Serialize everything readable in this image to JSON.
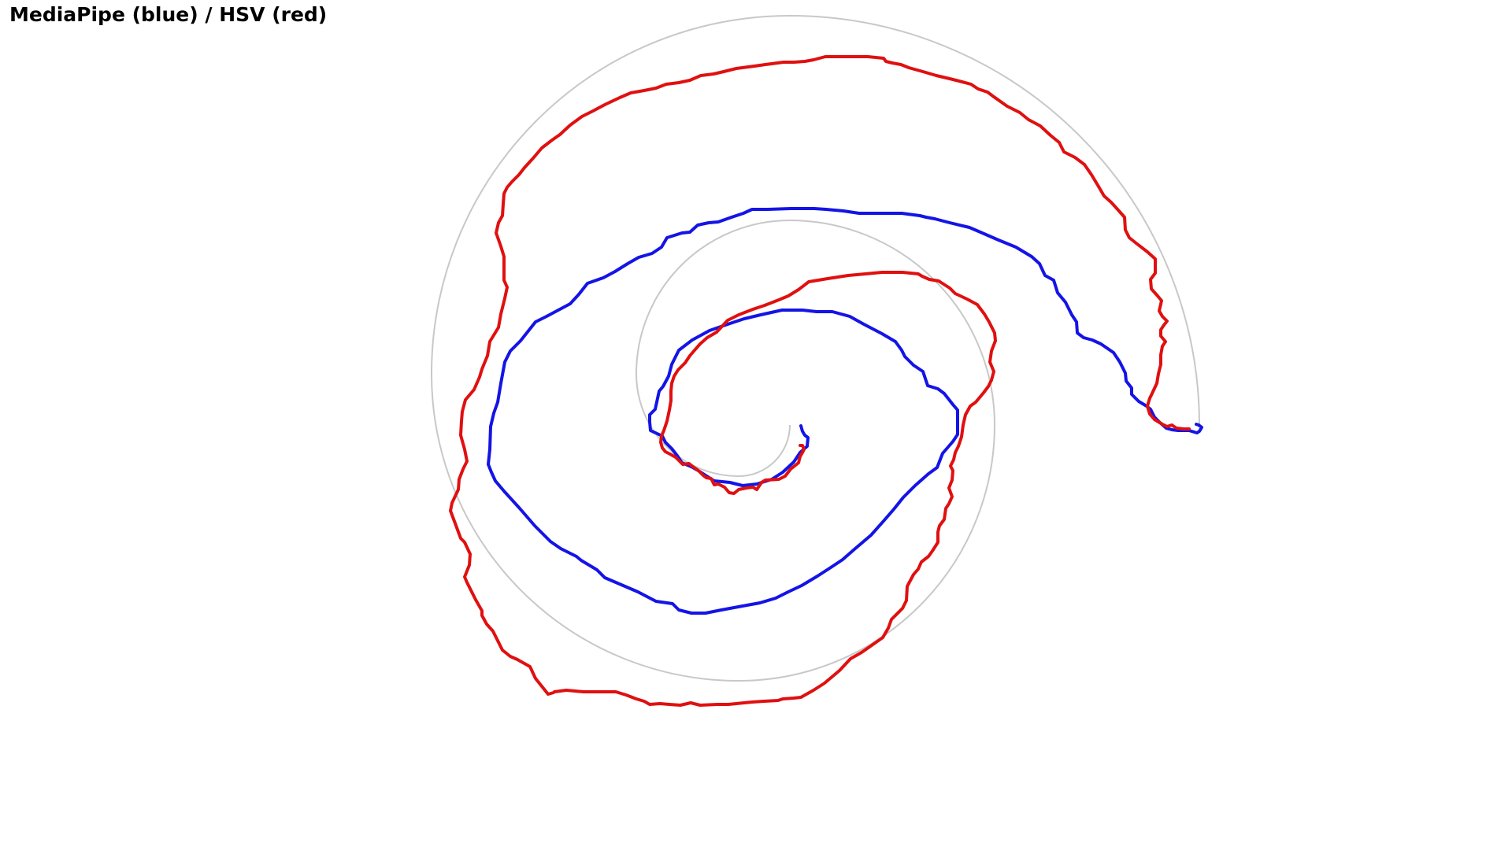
{
  "title": "MediaPipe (blue) / HSV (red)",
  "colors": {
    "background": "#ffffff",
    "template": "#c8c8c8",
    "mediapipe": "#1414e6",
    "hsv": "#e01010"
  }
}
